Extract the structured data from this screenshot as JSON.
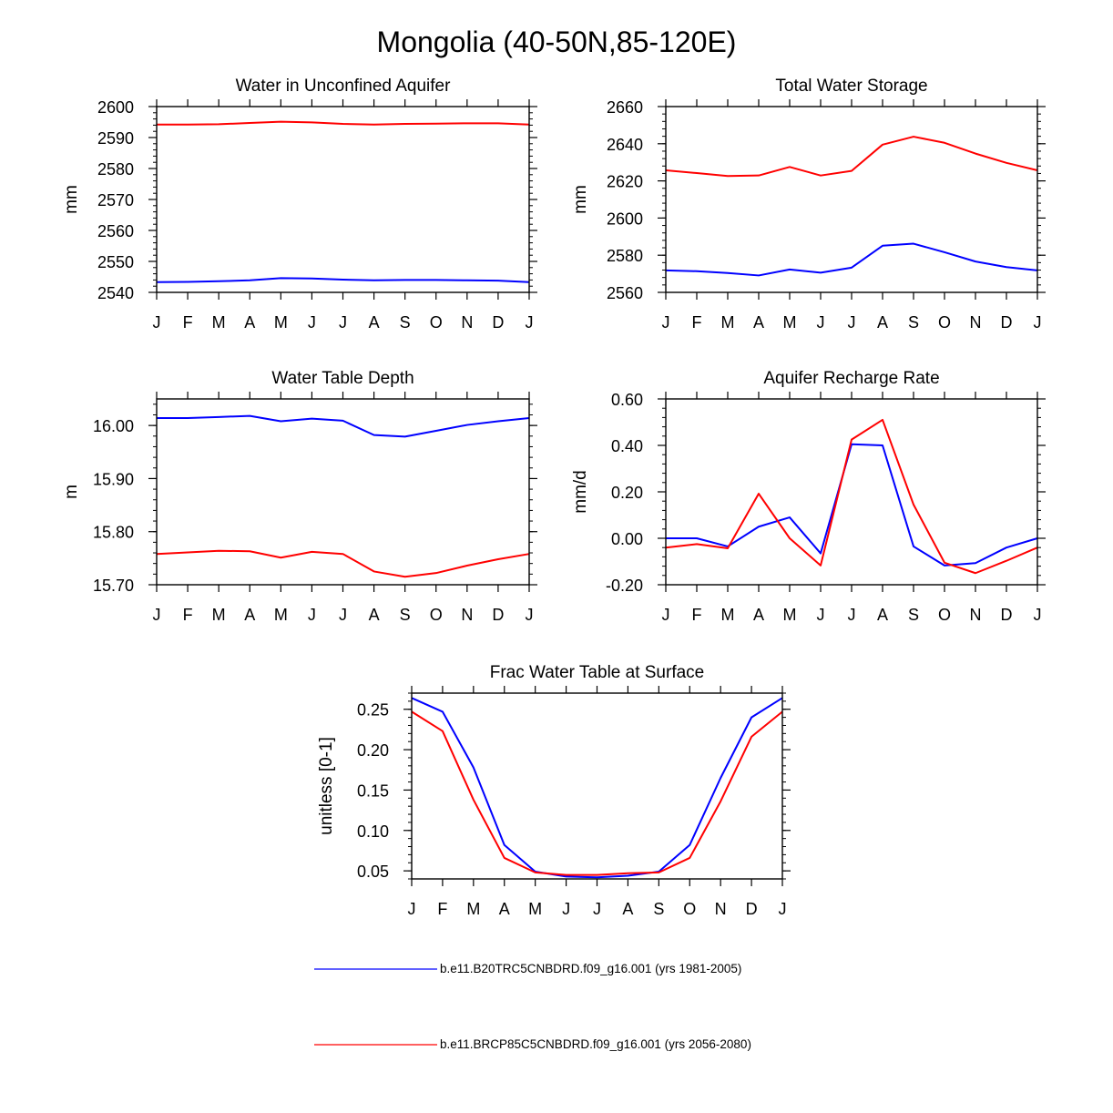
{
  "figure_title": "Mongolia (40-50N,85-120E)",
  "colors": {
    "hist": "#0000ff",
    "future": "#ff0000"
  },
  "legend": [
    {
      "label": "b.e11.B20TRC5CNBDRD.f09_g16.001 (yrs 1981-2005)",
      "color": "#0000ff"
    },
    {
      "label": "b.e11.BRCP85C5CNBDRD.f09_g16.001 (yrs 2056-2080)",
      "color": "#ff0000"
    }
  ],
  "chart_data": [
    {
      "type": "line",
      "title": "Water in Unconfined Aquifer",
      "ylabel": "mm",
      "ylim": [
        2540,
        2600
      ],
      "yticks": [
        2540,
        2550,
        2560,
        2570,
        2580,
        2590,
        2600
      ],
      "yticklabels": [
        "2540",
        "2550",
        "2560",
        "2570",
        "2580",
        "2590",
        "2600"
      ],
      "categories": [
        "J",
        "F",
        "M",
        "A",
        "M",
        "J",
        "J",
        "A",
        "S",
        "O",
        "N",
        "D",
        "J"
      ],
      "series": [
        {
          "name": "b.e11.B20TRC5CNBDRD.f09_g16.001 (yrs 1981-2005)",
          "color": "#0000ff",
          "values": [
            2543.3,
            2543.4,
            2543.6,
            2543.9,
            2544.6,
            2544.5,
            2544.1,
            2543.9,
            2544.0,
            2544.0,
            2543.9,
            2543.8,
            2543.3
          ]
        },
        {
          "name": "b.e11.BRCP85C5CNBDRD.f09_g16.001 (yrs 2056-2080)",
          "color": "#ff0000",
          "values": [
            2594.2,
            2594.2,
            2594.3,
            2594.7,
            2595.1,
            2594.9,
            2594.4,
            2594.2,
            2594.4,
            2594.5,
            2594.6,
            2594.6,
            2594.2
          ]
        }
      ]
    },
    {
      "type": "line",
      "title": "Total Water Storage",
      "ylabel": "mm",
      "ylim": [
        2560,
        2660
      ],
      "yticks": [
        2560,
        2580,
        2600,
        2620,
        2640,
        2660
      ],
      "yticklabels": [
        "2560",
        "2580",
        "2600",
        "2620",
        "2640",
        "2660"
      ],
      "categories": [
        "J",
        "F",
        "M",
        "A",
        "M",
        "J",
        "J",
        "A",
        "S",
        "O",
        "N",
        "D",
        "J"
      ],
      "series": [
        {
          "name": "b.e11.B20TRC5CNBDRD.f09_g16.001 (yrs 1981-2005)",
          "color": "#0000ff",
          "values": [
            2571.8,
            2571.4,
            2570.4,
            2569.1,
            2572.3,
            2570.6,
            2573.3,
            2585.1,
            2586.2,
            2581.6,
            2576.6,
            2573.6,
            2571.8
          ]
        },
        {
          "name": "b.e11.BRCP85C5CNBDRD.f09_g16.001 (yrs 2056-2080)",
          "color": "#ff0000",
          "values": [
            2625.7,
            2624.2,
            2622.6,
            2622.9,
            2627.5,
            2622.9,
            2625.4,
            2639.5,
            2643.8,
            2640.5,
            2634.7,
            2629.7,
            2625.7
          ]
        }
      ]
    },
    {
      "type": "line",
      "title": "Water Table Depth",
      "ylabel": "m",
      "ylim": [
        15.7,
        16.05
      ],
      "yticks": [
        15.7,
        15.8,
        15.9,
        16.0
      ],
      "yticklabels": [
        "15.70",
        "15.80",
        "15.90",
        "16.00"
      ],
      "categories": [
        "J",
        "F",
        "M",
        "A",
        "M",
        "J",
        "J",
        "A",
        "S",
        "O",
        "N",
        "D",
        "J"
      ],
      "series": [
        {
          "name": "b.e11.B20TRC5CNBDRD.f09_g16.001 (yrs 1981-2005)",
          "color": "#0000ff",
          "values": [
            16.014,
            16.014,
            16.016,
            16.018,
            16.008,
            16.013,
            16.009,
            15.982,
            15.979,
            15.99,
            16.001,
            16.008,
            16.014
          ]
        },
        {
          "name": "b.e11.BRCP85C5CNBDRD.f09_g16.001 (yrs 2056-2080)",
          "color": "#ff0000",
          "values": [
            15.758,
            15.761,
            15.764,
            15.763,
            15.751,
            15.762,
            15.758,
            15.725,
            15.715,
            15.722,
            15.736,
            15.748,
            15.758
          ]
        }
      ]
    },
    {
      "type": "line",
      "title": "Aquifer Recharge Rate",
      "ylabel": "mm/d",
      "ylim": [
        -0.2,
        0.6
      ],
      "yticks": [
        -0.2,
        0.0,
        0.2,
        0.4,
        0.6
      ],
      "yticklabels": [
        "-0.20",
        "0.00",
        "0.20",
        "0.40",
        "0.60"
      ],
      "categories": [
        "J",
        "F",
        "M",
        "A",
        "M",
        "J",
        "J",
        "A",
        "S",
        "O",
        "N",
        "D",
        "J"
      ],
      "series": [
        {
          "name": "b.e11.B20TRC5CNBDRD.f09_g16.001 (yrs 1981-2005)",
          "color": "#0000ff",
          "values": [
            0.0,
            0.0,
            -0.035,
            0.05,
            0.09,
            -0.065,
            0.405,
            0.4,
            -0.035,
            -0.117,
            -0.107,
            -0.04,
            0.0
          ]
        },
        {
          "name": "b.e11.BRCP85C5CNBDRD.f09_g16.001 (yrs 2056-2080)",
          "color": "#ff0000",
          "values": [
            -0.04,
            -0.025,
            -0.043,
            0.192,
            0.0,
            -0.117,
            0.425,
            0.51,
            0.145,
            -0.105,
            -0.15,
            -0.097,
            -0.04
          ]
        }
      ]
    },
    {
      "type": "line",
      "title": "Frac Water Table at Surface",
      "ylabel": "unitless [0-1]",
      "ylim": [
        0.04,
        0.27
      ],
      "yticks": [
        0.05,
        0.1,
        0.15,
        0.2,
        0.25
      ],
      "yticklabels": [
        "0.05",
        "0.10",
        "0.15",
        "0.20",
        "0.25"
      ],
      "categories": [
        "J",
        "F",
        "M",
        "A",
        "M",
        "J",
        "J",
        "A",
        "S",
        "O",
        "N",
        "D",
        "J"
      ],
      "series": [
        {
          "name": "b.e11.B20TRC5CNBDRD.f09_g16.001 (yrs 1981-2005)",
          "color": "#0000ff",
          "values": [
            0.264,
            0.247,
            0.178,
            0.082,
            0.049,
            0.043,
            0.042,
            0.044,
            0.049,
            0.082,
            0.165,
            0.24,
            0.264
          ]
        },
        {
          "name": "b.e11.BRCP85C5CNBDRD.f09_g16.001 (yrs 2056-2080)",
          "color": "#ff0000",
          "values": [
            0.247,
            0.223,
            0.138,
            0.066,
            0.048,
            0.045,
            0.045,
            0.047,
            0.048,
            0.066,
            0.136,
            0.216,
            0.247
          ]
        }
      ]
    }
  ]
}
